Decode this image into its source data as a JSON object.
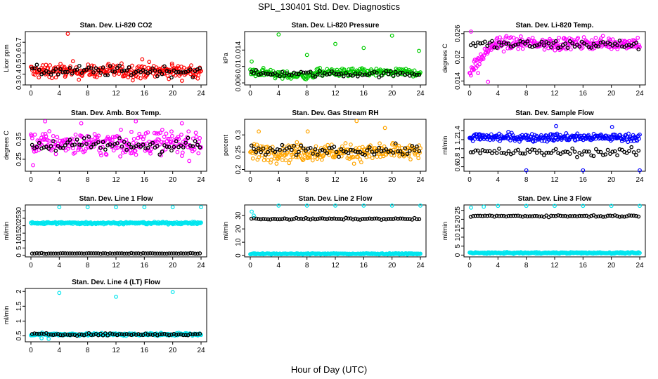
{
  "figure": {
    "title": "SPL_130401  Std. Dev. Diagnostics",
    "xlabel": "Hour of Day (UTC)"
  },
  "chart_data": [
    {
      "type": "scatter",
      "title": "Stan. Dev. Li-820 CO2",
      "ylabel": "Licor ppm",
      "xlim": [
        0,
        24
      ],
      "ylim": [
        0.3,
        0.8
      ],
      "xticks": [
        "0",
        "4",
        "8",
        "12",
        "16",
        "20",
        "24"
      ],
      "yticks": [
        0.3,
        0.4,
        0.5,
        0.6,
        0.7
      ],
      "colors": {
        "main": "#ff0000",
        "hourly": "#000000"
      },
      "main": {
        "base": 0.43,
        "spread": 0.05,
        "jitter": 0.025
      },
      "hourly": {
        "base": 0.43,
        "spread": 0.04
      },
      "outliers": [
        [
          5.2,
          0.78
        ],
        [
          15.7,
          0.54
        ],
        [
          19.9,
          0.5
        ]
      ]
    },
    {
      "type": "scatter",
      "title": "Stan. Dev. Li-820 Pressure",
      "ylabel": "kPa",
      "xlim": [
        0,
        24
      ],
      "ylim": [
        0.0055,
        0.0185
      ],
      "xticks": [
        "0",
        "4",
        "8",
        "12",
        "16",
        "20",
        "24"
      ],
      "yticks": [
        0.006,
        0.01,
        0.014
      ],
      "colors": {
        "main": "#00cc00",
        "hourly": "#000000"
      },
      "main": {
        "base": 0.0085,
        "spread": 0.0007,
        "jitter": 0.0004,
        "dip": [
          [
            3.5,
            9,
            0.0078
          ]
        ]
      },
      "hourly": {
        "base": 0.0082,
        "spread": 0.0006
      },
      "outliers": [
        [
          0.2,
          0.0112
        ],
        [
          4,
          0.0178
        ],
        [
          8,
          0.0128
        ],
        [
          12,
          0.0155
        ],
        [
          16,
          0.0145
        ],
        [
          20,
          0.0175
        ],
        [
          23.8,
          0.0138
        ]
      ]
    },
    {
      "type": "scatter",
      "title": "Stan. Dev. Li-820 Temp.",
      "ylabel": "degrees C",
      "xlim": [
        0,
        24
      ],
      "ylim": [
        0.013,
        0.0265
      ],
      "xticks": [
        "0",
        "4",
        "8",
        "12",
        "16",
        "20",
        "24"
      ],
      "yticks": [
        0.014,
        0.02,
        0.026
      ],
      "colors": {
        "main": "#ff00ff",
        "hourly": "#000000"
      },
      "main": {
        "base": 0.0235,
        "spread": 0.0012,
        "jitter": 0.0006,
        "ramp": [
          0,
          3.5,
          0.0165
        ]
      },
      "hourly": {
        "base": 0.0232,
        "spread": 0.001
      },
      "outliers": [
        [
          0.2,
          0.0265
        ],
        [
          0.6,
          0.0168
        ],
        [
          1.2,
          0.016
        ],
        [
          2.6,
          0.0138
        ]
      ]
    },
    {
      "type": "scatter",
      "title": "Stan. Dev. Amb. Box Temp.",
      "ylabel": "degrees C",
      "xlim": [
        0,
        24
      ],
      "ylim": [
        0.19,
        0.45
      ],
      "xticks": [
        "0",
        "4",
        "8",
        "12",
        "16",
        "20",
        "24"
      ],
      "yticks": [
        0.25,
        0.35
      ],
      "colors": {
        "main": "#ff00ff",
        "hourly": "#000000"
      },
      "main": {
        "base": 0.33,
        "spread": 0.04,
        "jitter": 0.03
      },
      "hourly": {
        "base": 0.32,
        "spread": 0.035
      },
      "outliers": [
        [
          0.3,
          0.22
        ],
        [
          2.0,
          0.44
        ],
        [
          7.1,
          0.43
        ],
        [
          14.8,
          0.44
        ],
        [
          21.3,
          0.43
        ]
      ]
    },
    {
      "type": "scatter",
      "title": "Stan. Dev. Gas Stream RH",
      "ylabel": "percent",
      "xlim": [
        0,
        24
      ],
      "ylim": [
        0.195,
        0.345
      ],
      "xticks": [
        "0",
        "4",
        "8",
        "12",
        "16",
        "20",
        "24"
      ],
      "yticks": [
        0.2,
        0.25,
        0.3
      ],
      "colors": {
        "main": "#ffa500",
        "hourly": "#000000"
      },
      "main": {
        "base": 0.25,
        "spread": 0.018,
        "jitter": 0.012
      },
      "hourly": {
        "base": 0.255,
        "spread": 0.012
      },
      "outliers": [
        [
          1.2,
          0.31
        ],
        [
          8.1,
          0.31
        ],
        [
          15.0,
          0.34
        ],
        [
          19.0,
          0.32
        ]
      ]
    },
    {
      "type": "scatter",
      "title": "Stan. Dev. Sample Flow",
      "ylabel": "ml/min",
      "xlim": [
        0,
        24
      ],
      "ylim": [
        0.5,
        1.65
      ],
      "xticks": [
        "0",
        "4",
        "8",
        "12",
        "16",
        "20",
        "24"
      ],
      "yticks": [
        0.6,
        0.8,
        1.0,
        1.2,
        1.4
      ],
      "colors": {
        "main": "#0000ff",
        "hourly": "#000000"
      },
      "main": {
        "base": 1.25,
        "spread": 0.06,
        "jitter": 0.04
      },
      "hourly": {
        "base": 0.92,
        "spread": 0.07
      },
      "outliers": [
        [
          8.0,
          0.52
        ],
        [
          16.0,
          0.52
        ],
        [
          24.0,
          0.52
        ],
        [
          12.2,
          1.5
        ],
        [
          20.1,
          1.48
        ]
      ]
    },
    {
      "type": "scatter",
      "title": "Stan. Dev. Line 1 Flow",
      "ylabel": "ml/min",
      "xlim": [
        0,
        24
      ],
      "ylim": [
        -1,
        34
      ],
      "xticks": [
        "0",
        "4",
        "8",
        "12",
        "16",
        "20",
        "24"
      ],
      "yticks": [
        0,
        5,
        10,
        15,
        20,
        25,
        30
      ],
      "colors": {
        "main": "#00e5ee",
        "hourly": "#000000"
      },
      "main": {
        "base": 21.8,
        "spread": 0.5,
        "jitter": 0.4
      },
      "hourly": {
        "base": 1.3,
        "spread": 0.2
      },
      "outliers": [
        [
          4,
          32.5
        ],
        [
          8,
          32.5
        ],
        [
          12,
          32.5
        ],
        [
          16,
          32.5
        ],
        [
          20,
          32.5
        ],
        [
          24,
          32.5
        ]
      ]
    },
    {
      "type": "scatter",
      "title": "Stan. Dev. Line 2 Flow",
      "ylabel": "ml/min",
      "xlim": [
        0,
        24
      ],
      "ylim": [
        -1,
        38
      ],
      "xticks": [
        "0",
        "4",
        "8",
        "12",
        "16",
        "20",
        "24"
      ],
      "yticks": [
        0,
        10,
        20,
        30
      ],
      "colors": {
        "main": "#00e5ee",
        "hourly": "#000000"
      },
      "main": {
        "base": 1.3,
        "spread": 0.2,
        "jitter": 0.3
      },
      "hourly": {
        "base": 27.5,
        "spread": 0.5
      },
      "outliers": [
        [
          0.2,
          33
        ],
        [
          0.5,
          30
        ],
        [
          4,
          37.5
        ],
        [
          8,
          37.5
        ],
        [
          12,
          37.5
        ],
        [
          16,
          37.5
        ],
        [
          20,
          37.5
        ],
        [
          24,
          37.5
        ]
      ]
    },
    {
      "type": "scatter",
      "title": "Stan. Dev. Line 3 Flow",
      "ylabel": "ml/min",
      "xlim": [
        0,
        24
      ],
      "ylim": [
        -1,
        28
      ],
      "xticks": [
        "0",
        "4",
        "8",
        "12",
        "16",
        "20",
        "24"
      ],
      "yticks": [
        0,
        5,
        10,
        15,
        20,
        25
      ],
      "colors": {
        "main": "#00e5ee",
        "hourly": "#000000"
      },
      "main": {
        "base": 1.2,
        "spread": 0.2,
        "jitter": 0.3
      },
      "hourly": {
        "base": 21.8,
        "spread": 0.4
      },
      "outliers": [
        [
          0.2,
          26.5
        ],
        [
          2.0,
          27
        ],
        [
          4,
          27.5
        ],
        [
          8,
          27.5
        ],
        [
          12,
          27.5
        ],
        [
          16,
          27.5
        ],
        [
          20,
          27.5
        ],
        [
          24,
          27.5
        ]
      ]
    },
    {
      "type": "scatter",
      "title": "Stan. Dev. Line 4 (LT) Flow",
      "ylabel": "ml/min",
      "xlim": [
        0,
        24
      ],
      "ylim": [
        0.3,
        2.1
      ],
      "xticks": [
        "0",
        "4",
        "8",
        "12",
        "16",
        "20",
        "24"
      ],
      "yticks": [
        0.5,
        1.0,
        1.5,
        2.0
      ],
      "colors": {
        "main": "#00e5ee",
        "hourly": "#000000"
      },
      "main": {
        "base": 0.55,
        "spread": 0.03,
        "jitter": 0.02
      },
      "hourly": {
        "base": 0.55,
        "spread": 0.03
      },
      "outliers": [
        [
          4,
          1.95
        ],
        [
          12,
          1.82
        ],
        [
          20,
          1.98
        ],
        [
          1.5,
          0.42
        ],
        [
          2.5,
          0.4
        ]
      ]
    }
  ]
}
